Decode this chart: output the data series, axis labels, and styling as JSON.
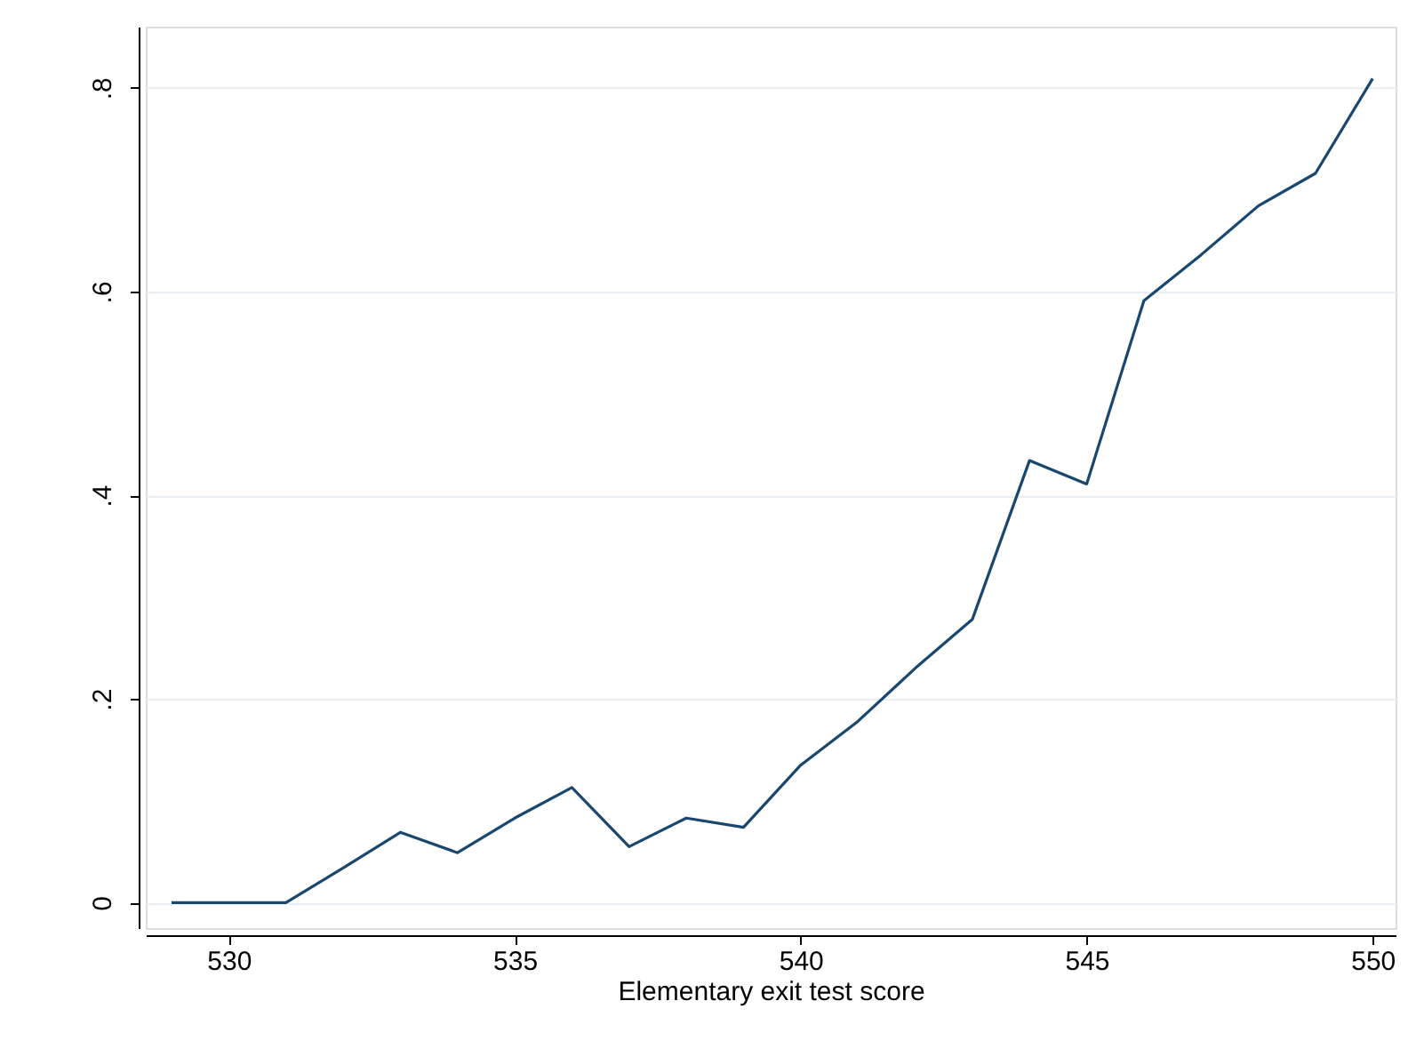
{
  "chart_data": {
    "type": "line",
    "xlabel": "Elementary exit test score",
    "x": [
      529,
      530,
      531,
      532,
      533,
      534,
      535,
      536,
      537,
      538,
      539,
      540,
      541,
      542,
      543,
      544,
      545,
      546,
      547,
      548,
      549,
      550
    ],
    "series": [
      {
        "color": "#1a476f",
        "values": [
          0,
          0,
          0,
          0.034,
          0.069,
          0.049,
          0.083,
          0.113,
          0.055,
          0.083,
          0.074,
          0.135,
          0.178,
          0.23,
          0.278,
          0.434,
          0.411,
          0.591,
          0.636,
          0.684,
          0.716,
          0.809
        ]
      }
    ],
    "xlim": [
      528.55,
      550.4
    ],
    "xticks": [
      530,
      535,
      540,
      545,
      550
    ],
    "ylim": [
      -0.025,
      0.86
    ],
    "yticks": [
      {
        "value": 0,
        "label": "0"
      },
      {
        "value": 0.2,
        "label": ".2"
      },
      {
        "value": 0.4,
        "label": ".4"
      },
      {
        "value": 0.6,
        "label": ".6"
      },
      {
        "value": 0.8,
        "label": ".8"
      }
    ],
    "grid": "y",
    "marker": "none",
    "line_style": "solid"
  }
}
